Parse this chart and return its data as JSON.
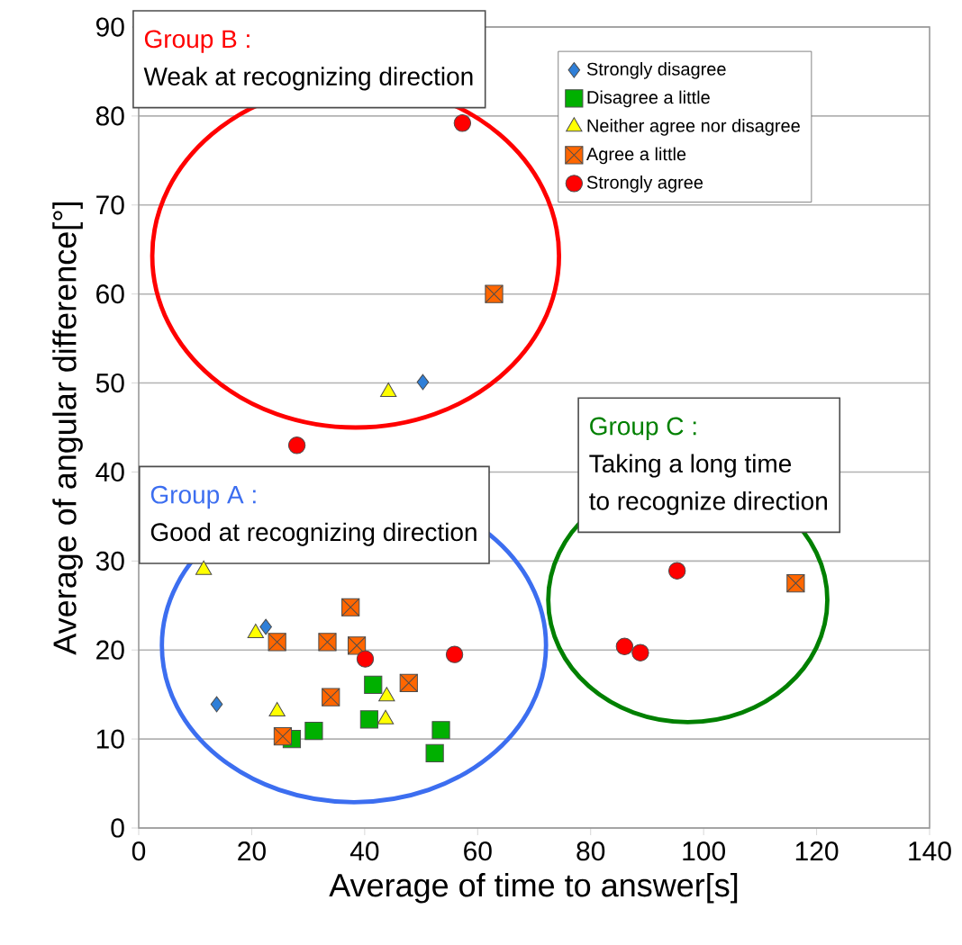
{
  "chart_data": {
    "type": "scatter",
    "xlabel": "Average of time to answer[s]",
    "ylabel": "Average of angular difference[°]",
    "xlim": [
      0,
      140
    ],
    "xticks": [
      0,
      20,
      40,
      60,
      80,
      100,
      120,
      140
    ],
    "ylim": [
      0,
      90
    ],
    "yticks": [
      0,
      10,
      20,
      30,
      40,
      50,
      60,
      70,
      80,
      90
    ],
    "grid": "y",
    "legend": "top right",
    "series": [
      {
        "name": "Strongly disagree",
        "color": "#2f7fd8",
        "marker": "diamond",
        "x": [
          22.5,
          13.8,
          50.3
        ],
        "values": [
          22.6,
          13.9,
          50.1
        ]
      },
      {
        "name": "Disagree a little",
        "color": "#00b000",
        "marker": "square",
        "x": [
          41.5,
          40.8,
          53.5,
          31.0,
          27.1,
          52.4
        ],
        "values": [
          16.1,
          12.2,
          11.0,
          10.9,
          10.0,
          8.4
        ]
      },
      {
        "name": "Neither agree nor disagree",
        "color": "#ffff00",
        "marker": "triangle",
        "x": [
          11.5,
          20.7,
          43.9,
          24.5,
          43.7,
          44.2
        ],
        "values": [
          29.0,
          21.9,
          14.8,
          13.1,
          12.2,
          49.0
        ]
      },
      {
        "name": "Agree a little",
        "color": "#ff6600",
        "x": [
          24.5,
          37.5,
          33.4,
          38.6,
          47.8,
          34.0,
          25.5,
          62.9,
          116.3
        ],
        "values": [
          20.9,
          24.8,
          20.9,
          20.5,
          16.3,
          14.7,
          10.3,
          60.0,
          27.5
        ]
      },
      {
        "name": "Strongly agree",
        "color": "#ff0000",
        "marker": "circle",
        "x": [
          40.1,
          55.9,
          28.0,
          57.3,
          95.3,
          86.0,
          88.8
        ],
        "values": [
          19.0,
          19.5,
          43.0,
          79.2,
          28.9,
          20.4,
          19.7
        ]
      }
    ],
    "annotations": [
      "Group B :",
      "Weak at recognizing direction",
      "Group A :",
      "Good at recognizing direction",
      "Group C :",
      "Taking a long time",
      "to recognize direction"
    ]
  }
}
